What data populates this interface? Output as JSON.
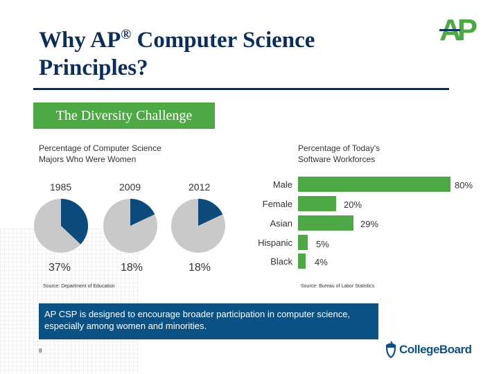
{
  "title": {
    "line1_a": "Why AP",
    "reg": "®",
    "line1_b": " Computer Science",
    "line2": "Principles?"
  },
  "logo_text": "AP",
  "subhead": "The Diversity Challenge",
  "colors": {
    "navy": "#0b2e5a",
    "green": "#4ea846",
    "pie_fill": "#0b4a7a",
    "pie_bg": "#c9c9c9",
    "callout": "#0b5184"
  },
  "left_chart": {
    "label": [
      "Percentage of Computer Science",
      "Majors Who Were Women"
    ],
    "source": "Source: Department of Education"
  },
  "right_chart": {
    "label": [
      "Percentage of Today's",
      "Software Workforces"
    ],
    "source": "Source: Bureau of Labor Statistics"
  },
  "chart_data": [
    {
      "type": "pie",
      "title": "Percentage of Computer Science Majors Who Were Women",
      "pies": [
        {
          "year": "1985",
          "value": 37,
          "label": "37%"
        },
        {
          "year": "2009",
          "value": 18,
          "label": "18%"
        },
        {
          "year": "2012",
          "value": 18,
          "label": "18%"
        }
      ]
    },
    {
      "type": "bar",
      "orientation": "horizontal",
      "title": "Percentage of Today's Software Workforces",
      "categories": [
        "Male",
        "Female",
        "Asian",
        "Hispanic",
        "Black"
      ],
      "values": [
        80,
        20,
        29,
        5,
        4
      ],
      "labels": [
        "80%",
        "20%",
        "29%",
        "5%",
        "4%"
      ],
      "xlim": [
        0,
        80
      ]
    }
  ],
  "callout": "AP CSP is designed to encourage broader participation in computer science, especially among women and minorities.",
  "page_number": "8",
  "brand": "CollegeBoard"
}
